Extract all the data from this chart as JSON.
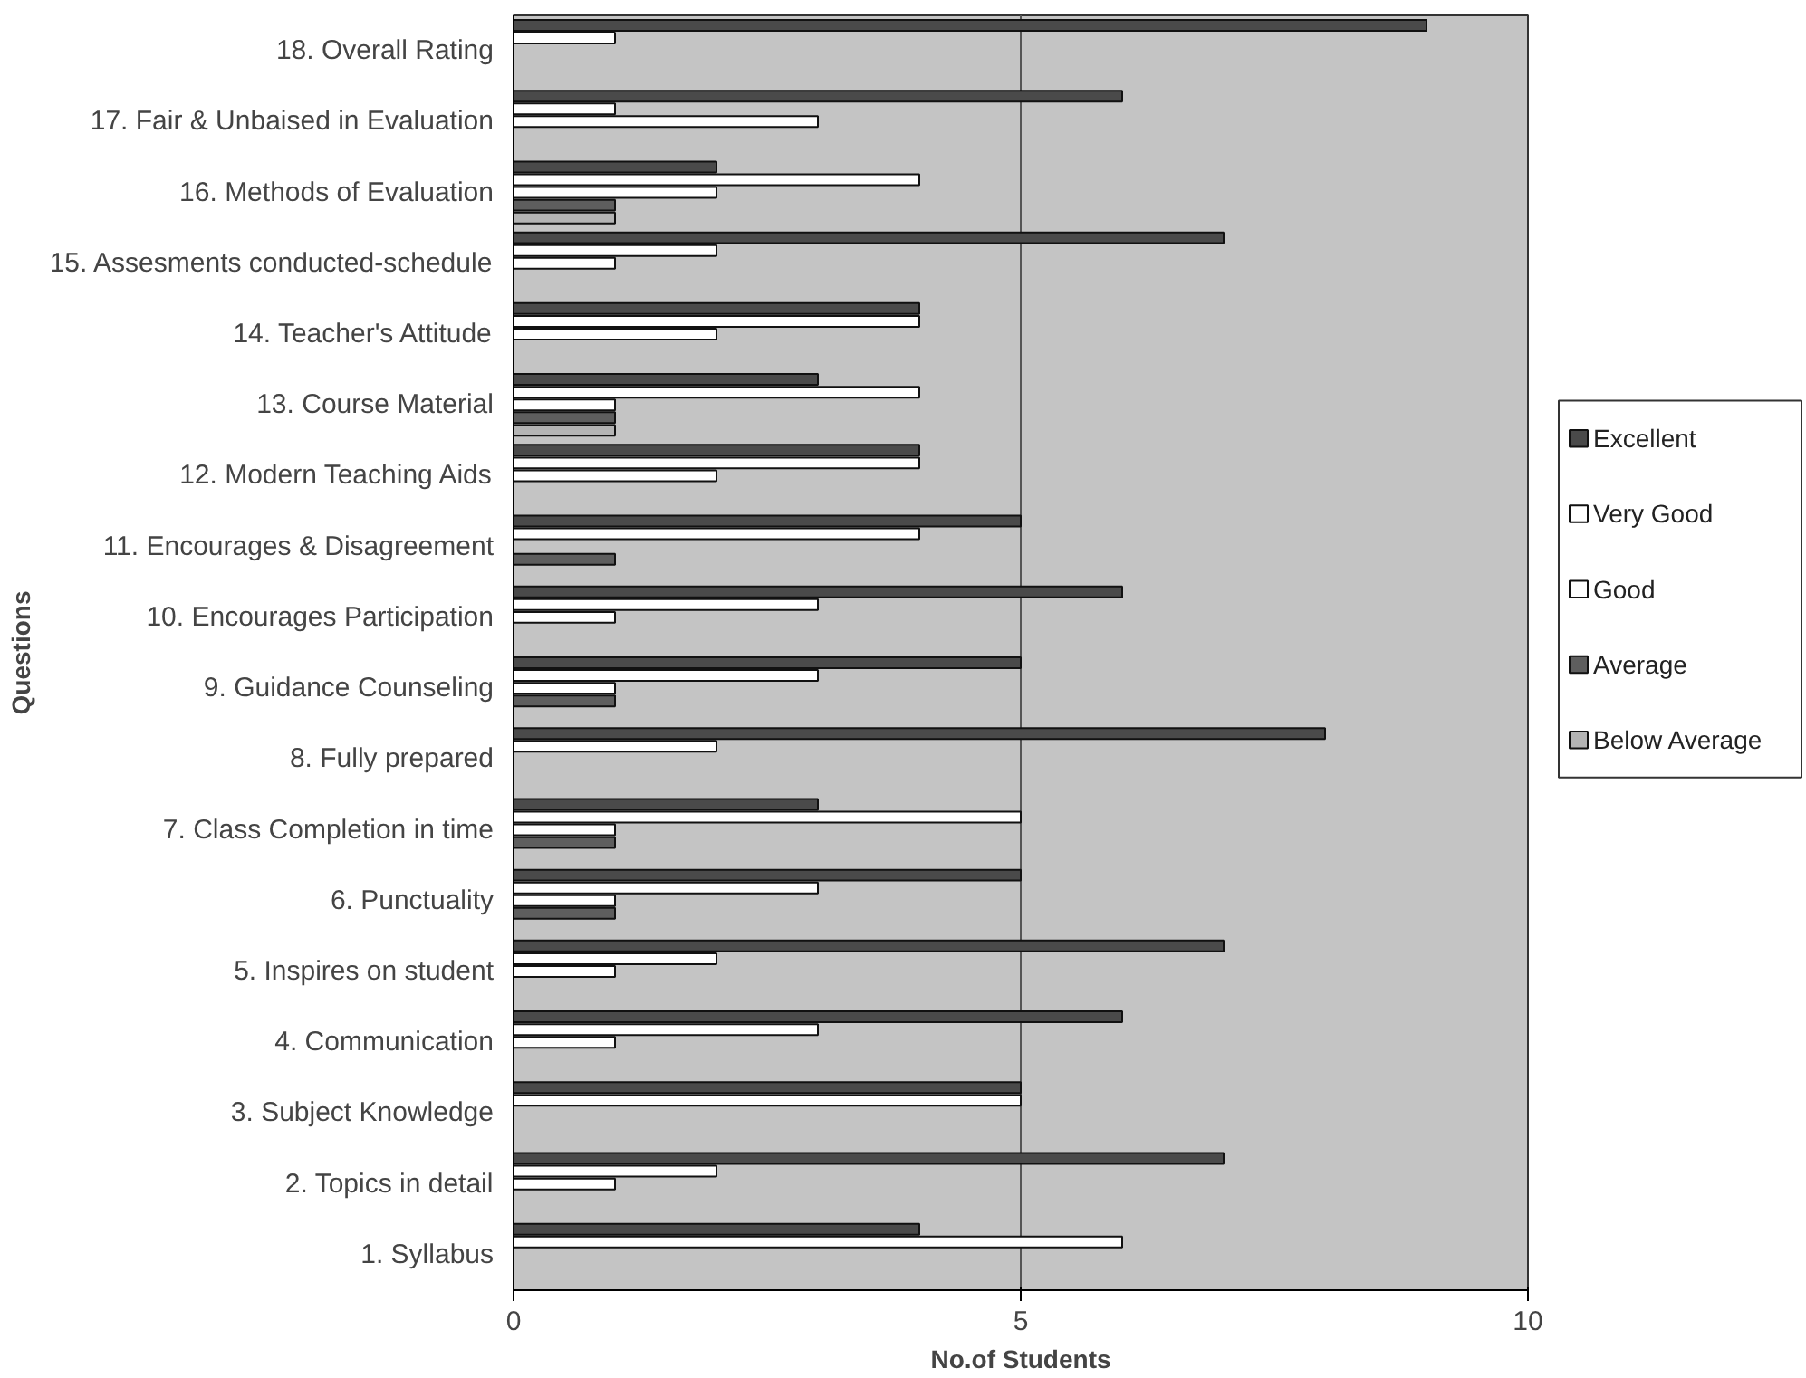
{
  "chart_data": {
    "type": "bar",
    "orientation": "horizontal",
    "xlabel": "No.of Students",
    "ylabel": "Questions",
    "categories": [
      "18. Overall Rating",
      "17. Fair & Unbaised in Evaluation",
      "16. Methods of Evaluation",
      "15. Assesments conducted-schedule",
      "14. Teacher's Attitude",
      "13. Course Material",
      "12. Modern Teaching Aids",
      "11. Encourages & Disagreement",
      "10. Encourages Participation",
      "9. Guidance Counseling",
      "8. Fully prepared",
      "7. Class Completion in time",
      "6. Punctuality",
      "5. Inspires on student",
      "4. Communication",
      "3. Subject Knowledge",
      "2. Topics in detail",
      "1. Syllabus"
    ],
    "series": [
      {
        "name": "Excellent",
        "color": "#4a4a4a",
        "values": [
          9,
          6,
          2,
          7,
          4,
          3,
          4,
          5,
          6,
          5,
          8,
          3,
          5,
          7,
          6,
          5,
          7,
          4
        ]
      },
      {
        "name": "Very Good",
        "color": "#ffffff",
        "values": [
          1,
          1,
          4,
          2,
          4,
          4,
          4,
          4,
          3,
          3,
          2,
          5,
          3,
          2,
          3,
          5,
          2,
          6
        ]
      },
      {
        "name": "Good",
        "color": "#ffffff",
        "values": [
          null,
          3,
          2,
          1,
          2,
          1,
          2,
          null,
          1,
          1,
          null,
          1,
          1,
          1,
          1,
          null,
          1,
          null
        ]
      },
      {
        "name": "Average",
        "color": "#5e5e5e",
        "values": [
          null,
          null,
          1,
          null,
          null,
          1,
          null,
          1,
          null,
          1,
          null,
          1,
          1,
          null,
          null,
          null,
          null,
          null
        ]
      },
      {
        "name": "Below Average",
        "color": "#b4b4b4",
        "values": [
          null,
          null,
          1,
          null,
          null,
          1,
          null,
          null,
          null,
          null,
          null,
          null,
          null,
          null,
          null,
          null,
          null,
          null
        ]
      }
    ],
    "xlim": [
      0,
      10
    ],
    "xticks": [
      0,
      5,
      10
    ],
    "grid": "x",
    "legend": "right"
  }
}
